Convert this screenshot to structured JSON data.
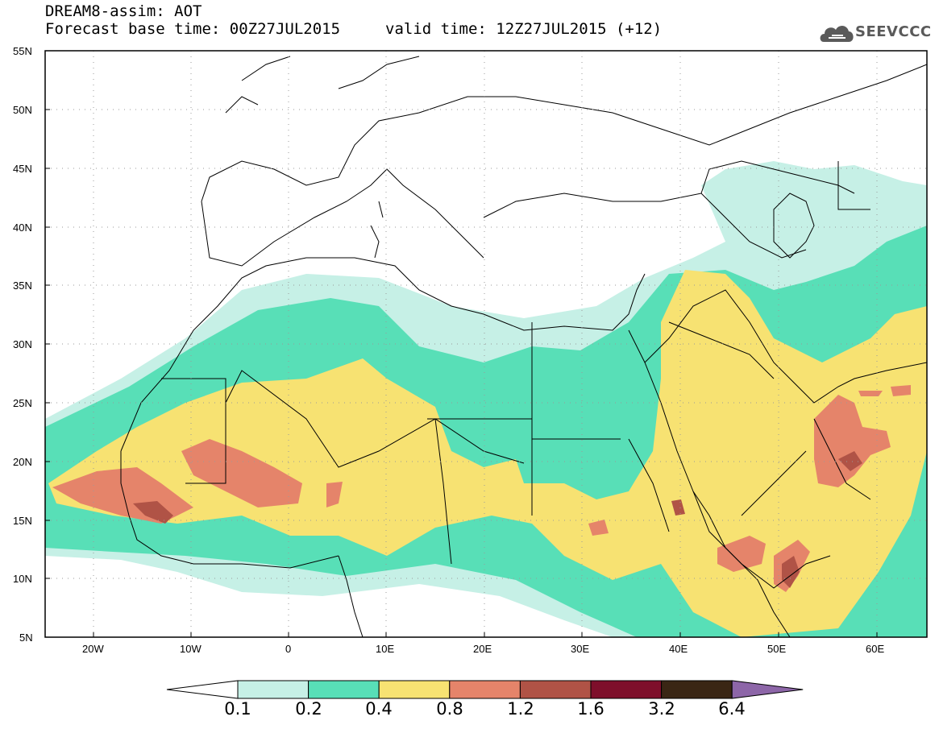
{
  "header": {
    "title": "DREAM8-assim: AOT",
    "base_time": "Forecast base time: 00Z27JUL2015",
    "valid_time": "valid time: 12Z27JUL2015 (+12)"
  },
  "logo": {
    "text": "SEEVCCC",
    "icon": "cloud-icon",
    "color": "#5a5a5a"
  },
  "map": {
    "latitude_labels": [
      "55N",
      "50N",
      "45N",
      "40N",
      "35N",
      "30N",
      "25N",
      "20N",
      "15N",
      "10N",
      "5N"
    ],
    "longitude_labels": [
      "20W",
      "10W",
      "0",
      "10E",
      "20E",
      "30E",
      "40E",
      "50E",
      "60E"
    ],
    "domain": {
      "lon_range": [
        -25,
        65
      ],
      "lat_range": [
        5,
        55
      ]
    }
  },
  "colorbar": {
    "levels": [
      "0.1",
      "0.2",
      "0.4",
      "0.8",
      "1.2",
      "1.6",
      "3.2",
      "6.4"
    ],
    "colors": [
      "#ffffff",
      "#c6f0e6",
      "#58dfb7",
      "#f7e272",
      "#e5846a",
      "#b05346",
      "#7e0f2b",
      "#3a2614",
      "#8d66a8"
    ]
  }
}
